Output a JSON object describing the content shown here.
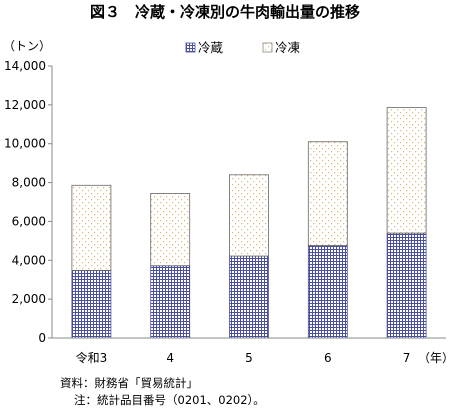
{
  "chart_data": {
    "type": "bar",
    "stacked": true,
    "title": "図３　冷蔵・冷凍別の牛肉輸出量の推移",
    "unit_label": "（トン）",
    "categories": [
      "令和3",
      "4",
      "5",
      "6",
      "7"
    ],
    "x_unit_suffix": "（年）",
    "series": [
      {
        "name": "冷蔵",
        "values": [
          3480,
          3720,
          4220,
          4760,
          5400
        ],
        "color": "#4a4f9e",
        "pattern": "grid"
      },
      {
        "name": "冷凍",
        "values": [
          4380,
          3720,
          4180,
          5340,
          6460
        ],
        "color": "#e6b87a",
        "pattern": "dots"
      }
    ],
    "ylim": [
      0,
      14000
    ],
    "yticks": [
      0,
      2000,
      4000,
      6000,
      8000,
      10000,
      12000,
      14000
    ],
    "ytick_labels": [
      "0",
      "2,000",
      "4,000",
      "6,000",
      "8,000",
      "10,000",
      "12,000",
      "14,000"
    ],
    "grid": false,
    "legend_position": "top"
  },
  "source": {
    "line1": "資料：財務省「貿易統計」",
    "line2": "注：統計品目番号（0201、0202）。"
  }
}
